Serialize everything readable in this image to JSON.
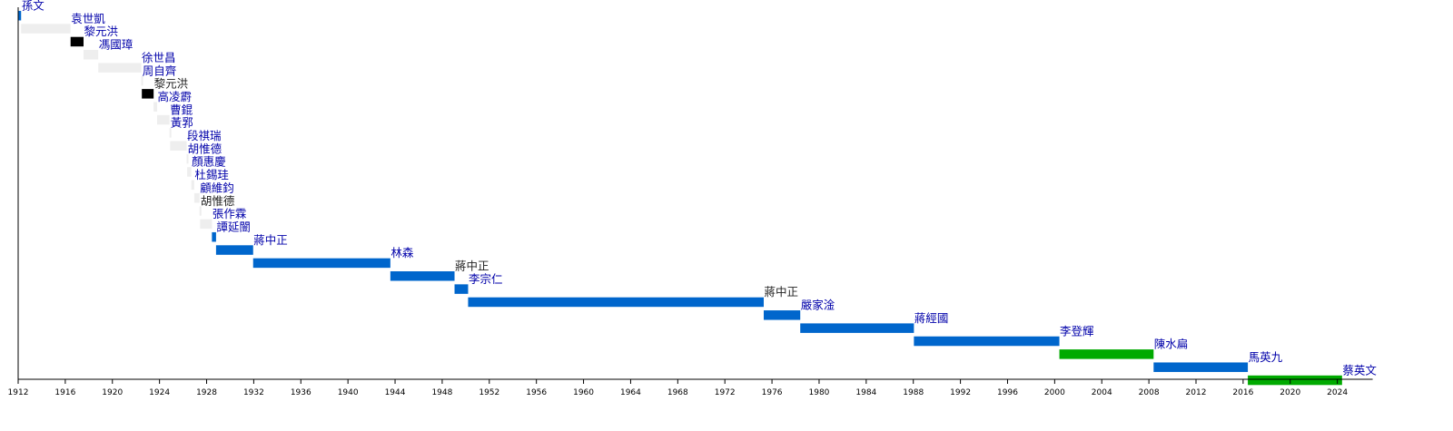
{
  "colors": {
    "blue": "#0066cc",
    "green": "#00aa00",
    "black": "#000000",
    "gray": "#eeeeee",
    "link": "#0000aa",
    "plain": "#222222"
  },
  "chart_data": {
    "type": "timeline",
    "title": "",
    "xlabel": "",
    "ylabel": "",
    "xlim": [
      1912,
      2027
    ],
    "x_ticks": [
      1912,
      1916,
      1920,
      1924,
      1928,
      1932,
      1936,
      1940,
      1944,
      1948,
      1952,
      1956,
      1960,
      1964,
      1968,
      1972,
      1976,
      1980,
      1984,
      1988,
      1992,
      1996,
      2000,
      2004,
      2008,
      2012,
      2016,
      2020,
      2024
    ],
    "grid": false,
    "legend": "none",
    "terms": [
      {
        "name": "孫文",
        "start": 1912.0,
        "end": 1912.25,
        "color": "blue",
        "link": true
      },
      {
        "name": "袁世凱",
        "start": 1912.25,
        "end": 1916.45,
        "color": "gray",
        "link": true
      },
      {
        "name": "黎元洪",
        "start": 1916.45,
        "end": 1917.55,
        "color": "black",
        "link": true
      },
      {
        "name": "馮國璋",
        "start": 1917.55,
        "end": 1918.8,
        "color": "gray",
        "link": true
      },
      {
        "name": "徐世昌",
        "start": 1918.8,
        "end": 1922.45,
        "color": "gray",
        "link": true
      },
      {
        "name": "周自齊",
        "start": 1922.45,
        "end": 1922.5,
        "color": "gray",
        "link": true
      },
      {
        "name": "黎元洪",
        "start": 1922.5,
        "end": 1923.5,
        "color": "black",
        "link": false
      },
      {
        "name": "高凌霨",
        "start": 1923.5,
        "end": 1923.8,
        "color": "gray",
        "link": true
      },
      {
        "name": "曹錕",
        "start": 1923.8,
        "end": 1924.85,
        "color": "gray",
        "link": true
      },
      {
        "name": "黃郛",
        "start": 1924.85,
        "end": 1924.9,
        "color": "gray",
        "link": true
      },
      {
        "name": "段祺瑞",
        "start": 1924.9,
        "end": 1926.3,
        "color": "gray",
        "link": true
      },
      {
        "name": "胡惟德",
        "start": 1926.3,
        "end": 1926.35,
        "color": "gray",
        "link": true
      },
      {
        "name": "顏惠慶",
        "start": 1926.35,
        "end": 1926.7,
        "color": "gray",
        "link": true
      },
      {
        "name": "杜錫珪",
        "start": 1926.7,
        "end": 1926.95,
        "color": "gray",
        "link": true
      },
      {
        "name": "顧維鈞",
        "start": 1926.95,
        "end": 1927.4,
        "color": "gray",
        "link": true
      },
      {
        "name": "胡惟德",
        "start": 1927.4,
        "end": 1927.45,
        "color": "gray",
        "link": false
      },
      {
        "name": "張作霖",
        "start": 1927.45,
        "end": 1928.45,
        "color": "gray",
        "link": true
      },
      {
        "name": "譚延闓",
        "start": 1928.45,
        "end": 1928.8,
        "color": "blue",
        "link": true
      },
      {
        "name": "蔣中正",
        "start": 1928.8,
        "end": 1931.95,
        "color": "blue",
        "link": true
      },
      {
        "name": "林森",
        "start": 1931.95,
        "end": 1943.6,
        "color": "blue",
        "link": true
      },
      {
        "name": "蔣中正",
        "start": 1943.6,
        "end": 1949.05,
        "color": "blue",
        "link": false
      },
      {
        "name": "李宗仁",
        "start": 1949.05,
        "end": 1950.2,
        "color": "blue",
        "link": true
      },
      {
        "name": "蔣中正",
        "start": 1950.2,
        "end": 1975.3,
        "color": "blue",
        "link": false
      },
      {
        "name": "嚴家淦",
        "start": 1975.3,
        "end": 1978.4,
        "color": "blue",
        "link": true
      },
      {
        "name": "蔣經國",
        "start": 1978.4,
        "end": 1988.05,
        "color": "blue",
        "link": true
      },
      {
        "name": "李登輝",
        "start": 1988.05,
        "end": 2000.4,
        "color": "blue",
        "link": true
      },
      {
        "name": "陳水扁",
        "start": 2000.4,
        "end": 2008.4,
        "color": "green",
        "link": true
      },
      {
        "name": "馬英九",
        "start": 2008.4,
        "end": 2016.4,
        "color": "blue",
        "link": true
      },
      {
        "name": "蔡英文",
        "start": 2016.4,
        "end": 2024.4,
        "color": "green",
        "link": true
      }
    ]
  }
}
